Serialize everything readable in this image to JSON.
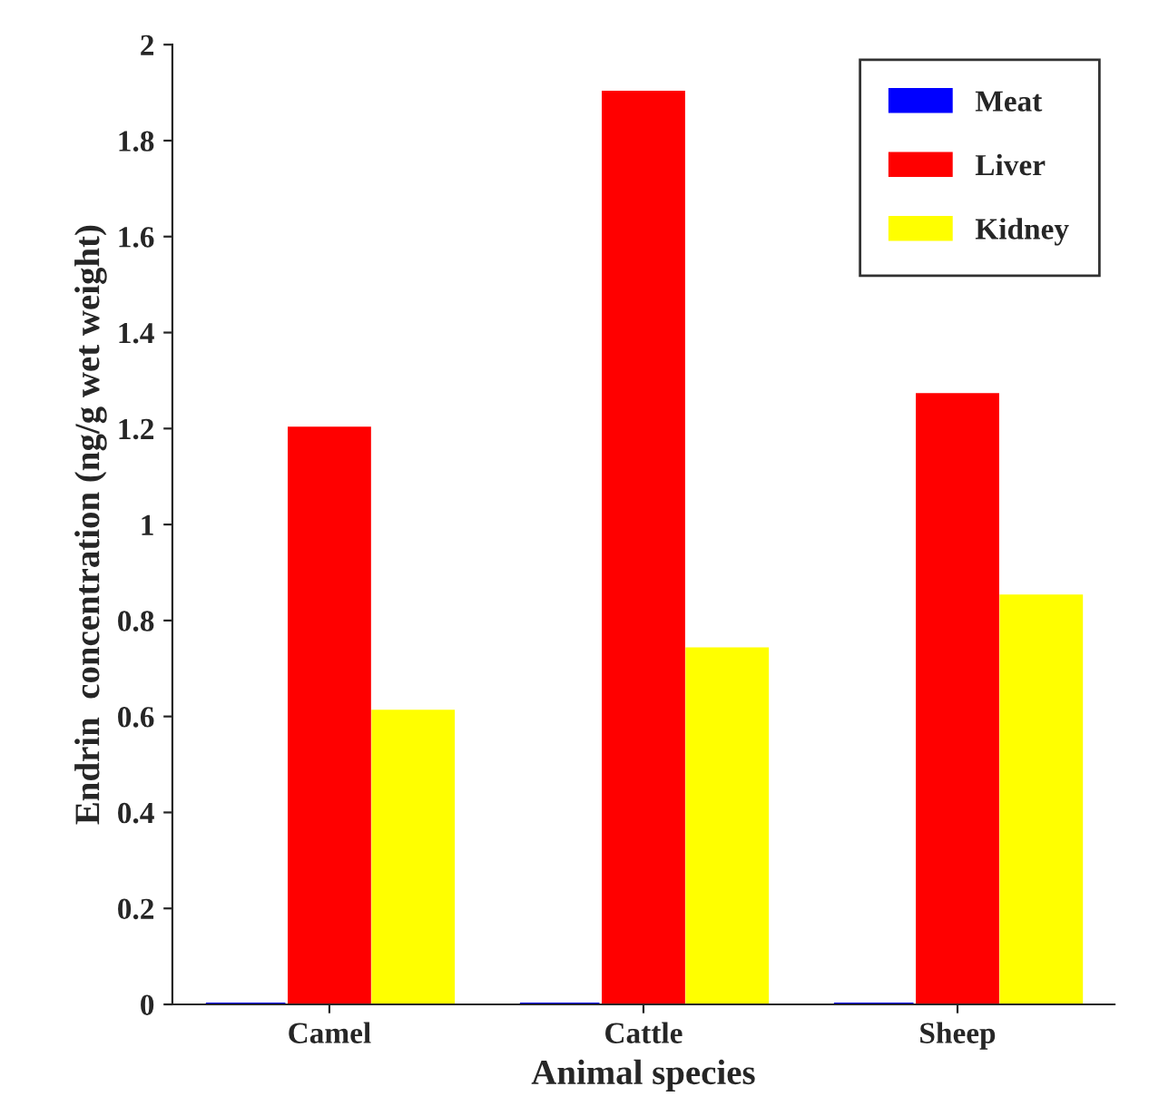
{
  "chart_data": {
    "type": "bar",
    "xlabel": "Animal species",
    "ylabel": "Endrin  concentration (ng/g wet weight)",
    "categories": [
      "Camel",
      "Cattle",
      "Sheep"
    ],
    "series": [
      {
        "name": "Meat",
        "color": "#0000ff",
        "values": [
          0,
          0,
          0
        ]
      },
      {
        "name": "Liver",
        "color": "#ff0000",
        "values": [
          1.2,
          1.9,
          1.27
        ]
      },
      {
        "name": "Kidney",
        "color": "#ffff00",
        "values": [
          0.61,
          0.74,
          0.85
        ]
      }
    ],
    "ylim": [
      0,
      2
    ],
    "yticks": [
      0,
      0.2,
      0.4,
      0.6,
      0.8,
      1,
      1.2,
      1.4,
      1.6,
      1.8,
      2
    ],
    "grid": false,
    "legend": "top right"
  }
}
